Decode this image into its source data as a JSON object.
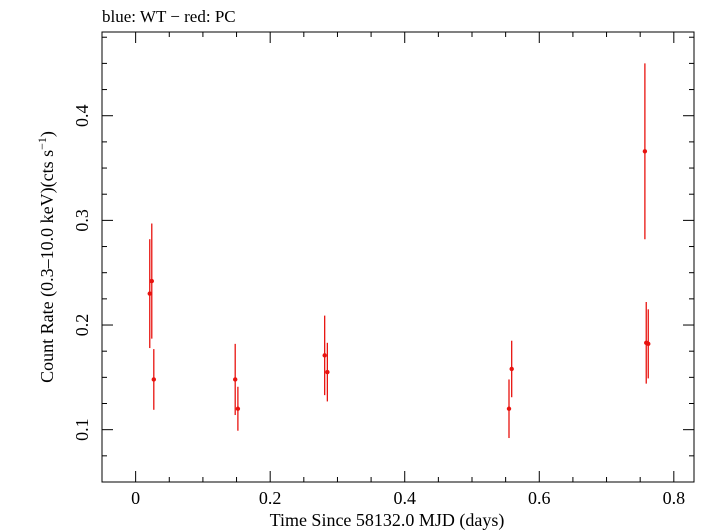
{
  "chart_data": {
    "type": "scatter",
    "legend": "blue: WT − red: PC",
    "xlabel": "Time Since 58132.0 MJD (days)",
    "ylabel_main": "Count Rate (0.3–10.0 keV)(cts s",
    "ylabel_sup": "−1",
    "ylabel_end": ")",
    "xlim": [
      -0.05,
      0.83
    ],
    "ylim": [
      0.05,
      0.48
    ],
    "xticks": [
      0,
      0.2,
      0.4,
      0.6,
      0.8
    ],
    "xtick_labels": [
      "0",
      "0.2",
      "0.4",
      "0.6",
      "0.8"
    ],
    "yticks": [
      0.1,
      0.2,
      0.3,
      0.4
    ],
    "ytick_labels": [
      "0.1",
      "0.2",
      "0.3",
      "0.4"
    ],
    "series": [
      {
        "color": "#e8130f",
        "points": [
          {
            "x": 0.021,
            "y": 0.23,
            "err": 0.052
          },
          {
            "x": 0.024,
            "y": 0.242,
            "err": 0.055
          },
          {
            "x": 0.027,
            "y": 0.148,
            "err": 0.029
          },
          {
            "x": 0.148,
            "y": 0.148,
            "err": 0.034
          },
          {
            "x": 0.152,
            "y": 0.12,
            "err": 0.021
          },
          {
            "x": 0.281,
            "y": 0.171,
            "err": 0.038
          },
          {
            "x": 0.285,
            "y": 0.155,
            "err": 0.028
          },
          {
            "x": 0.555,
            "y": 0.12,
            "err": 0.028
          },
          {
            "x": 0.559,
            "y": 0.158,
            "err": 0.027
          },
          {
            "x": 0.757,
            "y": 0.366,
            "err": 0.084
          },
          {
            "x": 0.759,
            "y": 0.183,
            "err": 0.039
          },
          {
            "x": 0.762,
            "y": 0.182,
            "err": 0.033
          }
        ]
      }
    ]
  }
}
